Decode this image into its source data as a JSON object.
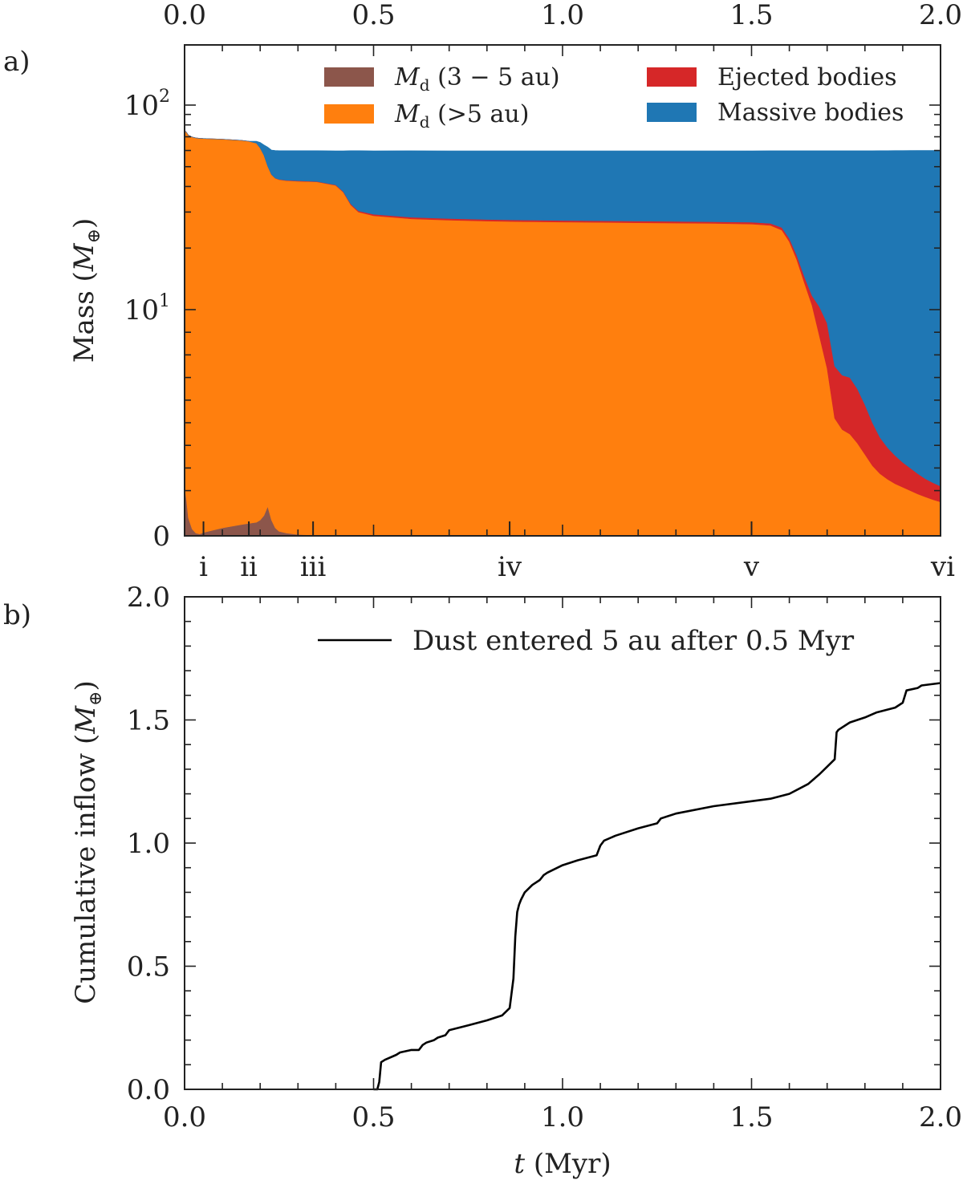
{
  "chart_data": [
    {
      "type": "area",
      "panel_label": "a)",
      "ylabel": "Mass (M⊕)",
      "ylabel_main": "Mass (",
      "ylabel_sym": "M",
      "ylabel_sub": "⊕",
      "ylabel_close": ")",
      "top_xticks": [
        "0.0",
        "0.5",
        "1.0",
        "1.5",
        "2.0"
      ],
      "top_xtick_values": [
        0,
        0.5,
        1.0,
        1.5,
        2.0
      ],
      "xlim": [
        0,
        2
      ],
      "ylim": [
        0,
        200
      ],
      "yscale": "symlog",
      "ytick_labels": [
        {
          "value": 100,
          "base": "10",
          "exp": "2"
        },
        {
          "value": 10,
          "base": "10",
          "exp": "1"
        },
        {
          "value": 0,
          "base": "0",
          "exp": ""
        }
      ],
      "legend": {
        "placement": "top-right",
        "entries": [
          {
            "sym": "M",
            "sub": "d",
            "text": " (3 − 5 au)",
            "color": "#8c564b"
          },
          {
            "sym": "M",
            "sub": "d",
            "text": " (>5 au)",
            "color": "#ff7f0e"
          },
          {
            "sym": "",
            "sub": "",
            "text": "Ejected bodies",
            "color": "#d62728"
          },
          {
            "sym": "",
            "sub": "",
            "text": "Massive bodies",
            "color": "#1f77b4"
          }
        ]
      },
      "markers": [
        {
          "label": "i",
          "t": 0.05
        },
        {
          "label": "ii",
          "t": 0.17
        },
        {
          "label": "iii",
          "t": 0.34
        },
        {
          "label": "iv",
          "t": 0.86
        },
        {
          "label": "v",
          "t": 1.5
        },
        {
          "label": "vi",
          "t": 2.0
        }
      ],
      "x": [
        0,
        0.005,
        0.01,
        0.02,
        0.03,
        0.04,
        0.05,
        0.1,
        0.15,
        0.17,
        0.19,
        0.2,
        0.21,
        0.22,
        0.23,
        0.24,
        0.25,
        0.27,
        0.3,
        0.35,
        0.4,
        0.42,
        0.44,
        0.46,
        0.5,
        0.6,
        0.7,
        0.8,
        0.9,
        1.0,
        1.1,
        1.2,
        1.3,
        1.4,
        1.5,
        1.55,
        1.58,
        1.6,
        1.62,
        1.64,
        1.66,
        1.68,
        1.7,
        1.72,
        1.74,
        1.76,
        1.78,
        1.8,
        1.82,
        1.84,
        1.86,
        1.88,
        1.9,
        1.92,
        1.94,
        1.96,
        1.98,
        2.0
      ],
      "series": [
        {
          "name": "Md (3 − 5 au)",
          "color": "#8c564b",
          "values": [
            2.2,
            1.6,
            0.8,
            0.3,
            0.12,
            0.08,
            0.15,
            0.35,
            0.5,
            0.55,
            0.6,
            0.7,
            0.9,
            1.3,
            0.7,
            0.35,
            0.2,
            0.12,
            0.06,
            0.03,
            0.01,
            0,
            0,
            0,
            0,
            0,
            0,
            0,
            0.02,
            0,
            0,
            0,
            0,
            0,
            0,
            0,
            0,
            0,
            0,
            0,
            0,
            0,
            0,
            0,
            0,
            0,
            0,
            0,
            0,
            0,
            0,
            0,
            0,
            0,
            0,
            0,
            0,
            0
          ]
        },
        {
          "name": "Md (>5 au)",
          "color": "#ff7f0e",
          "values": [
            73,
            72,
            70.5,
            69.5,
            69,
            68.7,
            68.5,
            67.8,
            66.8,
            66,
            64.5,
            61,
            56,
            49,
            45,
            43.5,
            43,
            42.6,
            42.4,
            42.1,
            40.5,
            37.5,
            32.5,
            30,
            28.8,
            27.8,
            27.4,
            27.1,
            26.9,
            26.8,
            26.7,
            26.6,
            26.5,
            26.4,
            26.2,
            25.8,
            24.5,
            21.5,
            17.5,
            13.5,
            10.5,
            8.8,
            7.4,
            5.2,
            4.7,
            4.5,
            4.1,
            3.6,
            3.1,
            2.75,
            2.5,
            2.3,
            2.15,
            2.0,
            1.85,
            1.72,
            1.6,
            1.5
          ]
        },
        {
          "name": "Ejected bodies",
          "color": "#d62728",
          "values": [
            0,
            0,
            0,
            0,
            0,
            0,
            0,
            0,
            0,
            0,
            0,
            0,
            0,
            0,
            0.1,
            0.12,
            0.15,
            0.18,
            0.2,
            0.22,
            0.25,
            0.28,
            0.35,
            0.4,
            0.45,
            0.5,
            0.5,
            0.5,
            0.5,
            0.5,
            0.5,
            0.5,
            0.5,
            0.5,
            0.55,
            0.6,
            0.7,
            0.8,
            0.9,
            1.0,
            1.2,
            1.5,
            2.0,
            2.3,
            2.4,
            2.5,
            2.4,
            2.2,
            1.9,
            1.6,
            1.4,
            1.25,
            1.1,
            1.0,
            0.9,
            0.8,
            0.75,
            0.7
          ]
        },
        {
          "name": "Massive bodies",
          "color": "#1f77b4",
          "values": [
            0,
            0,
            0,
            0,
            0,
            0,
            0,
            0,
            0,
            0,
            1.5,
            4,
            7,
            12,
            14.5,
            16,
            16.5,
            17,
            17.2,
            17.5,
            19,
            22,
            27,
            29.5,
            30.5,
            31.5,
            31.8,
            32.1,
            32.3,
            32.4,
            32.5,
            32.6,
            32.7,
            32.8,
            33,
            33.4,
            34.6,
            37.5,
            41.4,
            45.3,
            48.1,
            49.5,
            50.4,
            52.3,
            52.7,
            52.8,
            53.3,
            54,
            54.8,
            55.5,
            56,
            56.4,
            56.7,
            57,
            57.3,
            57.5,
            57.7,
            57.9
          ]
        }
      ]
    },
    {
      "type": "line",
      "panel_label": "b)",
      "xlabel_sym": "t",
      "xlabel_rest": " (Myr)",
      "ylabel_main": "Cumulative inflow (",
      "ylabel_sym": "M",
      "ylabel_sub": "⊕",
      "ylabel_close": ")",
      "xlim": [
        0,
        2
      ],
      "ylim": [
        0,
        2
      ],
      "xticks": [
        "0.0",
        "0.5",
        "1.0",
        "1.5",
        "2.0"
      ],
      "xtick_values": [
        0,
        0.5,
        1.0,
        1.5,
        2.0
      ],
      "yticks": [
        "0.0",
        "0.5",
        "1.0",
        "1.5",
        "2.0"
      ],
      "ytick_values": [
        0,
        0.5,
        1.0,
        1.5,
        2.0
      ],
      "legend": {
        "placement": "top-right",
        "entries": [
          {
            "text": "Dust entered 5 au after 0.5 Myr",
            "color": "#000000"
          }
        ]
      },
      "series": [
        {
          "name": "Dust entered 5 au after 0.5 Myr",
          "color": "#000000",
          "x": [
            0.5,
            0.51,
            0.515,
            0.52,
            0.53,
            0.56,
            0.57,
            0.6,
            0.62,
            0.63,
            0.64,
            0.66,
            0.67,
            0.69,
            0.7,
            0.75,
            0.8,
            0.84,
            0.86,
            0.87,
            0.875,
            0.88,
            0.885,
            0.89,
            0.9,
            0.92,
            0.94,
            0.95,
            0.96,
            1.0,
            1.04,
            1.09,
            1.1,
            1.11,
            1.14,
            1.2,
            1.25,
            1.26,
            1.3,
            1.4,
            1.5,
            1.55,
            1.6,
            1.65,
            1.68,
            1.7,
            1.72,
            1.725,
            1.73,
            1.76,
            1.8,
            1.83,
            1.88,
            1.9,
            1.91,
            1.94,
            1.95,
            2.0
          ],
          "y": [
            0,
            0,
            0.03,
            0.11,
            0.12,
            0.14,
            0.15,
            0.16,
            0.16,
            0.18,
            0.19,
            0.2,
            0.21,
            0.22,
            0.24,
            0.26,
            0.28,
            0.3,
            0.33,
            0.45,
            0.62,
            0.72,
            0.75,
            0.77,
            0.8,
            0.83,
            0.85,
            0.87,
            0.88,
            0.91,
            0.93,
            0.95,
            0.99,
            1.01,
            1.03,
            1.06,
            1.08,
            1.1,
            1.12,
            1.15,
            1.17,
            1.18,
            1.2,
            1.24,
            1.28,
            1.31,
            1.34,
            1.45,
            1.46,
            1.49,
            1.51,
            1.53,
            1.55,
            1.57,
            1.62,
            1.63,
            1.64,
            1.65
          ]
        }
      ]
    }
  ]
}
